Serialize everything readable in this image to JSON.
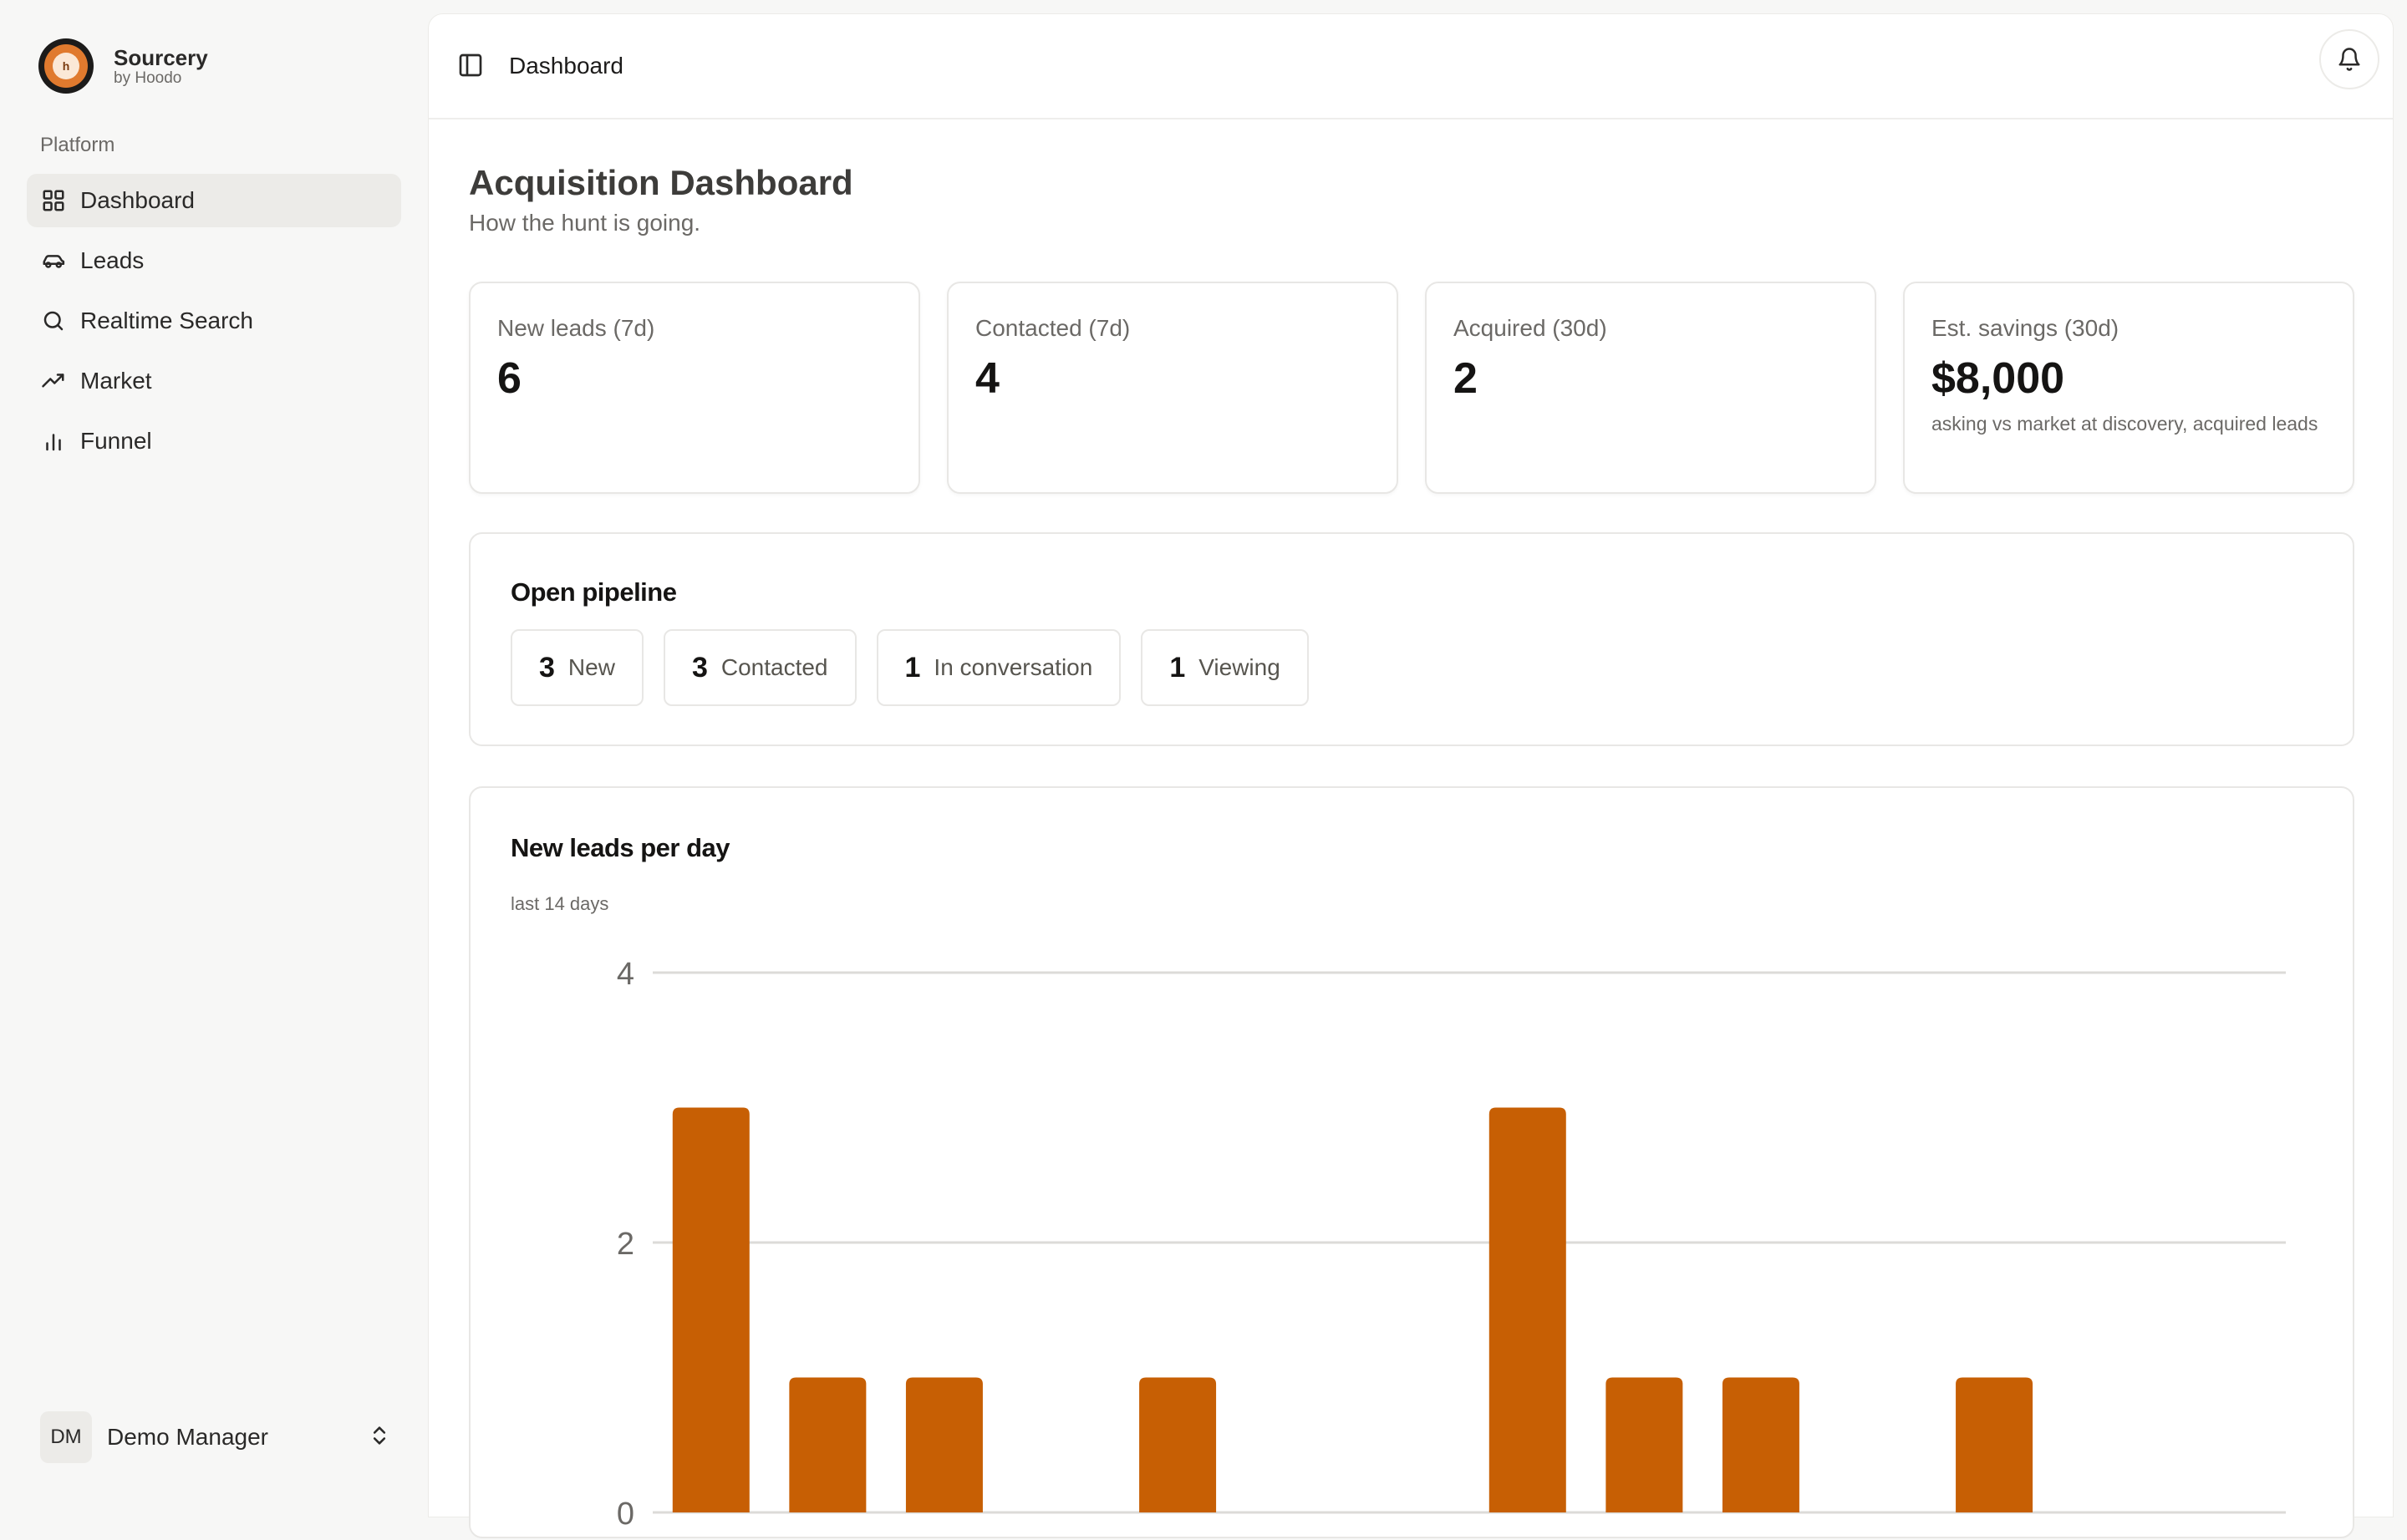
{
  "brand": {
    "name": "Sourcery",
    "sub": "by Hoodo",
    "logo_glyph": "h"
  },
  "sidebar": {
    "section": "Platform",
    "items": [
      {
        "label": "Dashboard",
        "icon": "grid-icon",
        "active": true
      },
      {
        "label": "Leads",
        "icon": "car-icon",
        "active": false
      },
      {
        "label": "Realtime Search",
        "icon": "search-icon",
        "active": false
      },
      {
        "label": "Market",
        "icon": "trending-up-icon",
        "active": false
      },
      {
        "label": "Funnel",
        "icon": "bar-chart-icon",
        "active": false
      }
    ]
  },
  "user": {
    "initials": "DM",
    "name": "Demo Manager"
  },
  "topbar": {
    "title": "Dashboard"
  },
  "page": {
    "title": "Acquisition Dashboard",
    "subtitle": "How the hunt is going."
  },
  "stats": [
    {
      "label": "New leads (7d)",
      "value": "6",
      "note": ""
    },
    {
      "label": "Contacted (7d)",
      "value": "4",
      "note": ""
    },
    {
      "label": "Acquired (30d)",
      "value": "2",
      "note": ""
    },
    {
      "label": "Est. savings (30d)",
      "value": "$8,000",
      "note": "asking vs market at discovery, acquired leads"
    }
  ],
  "pipeline": {
    "title": "Open pipeline",
    "stages": [
      {
        "count": "3",
        "label": "New"
      },
      {
        "count": "3",
        "label": "Contacted"
      },
      {
        "count": "1",
        "label": "In conversation"
      },
      {
        "count": "1",
        "label": "Viewing"
      }
    ]
  },
  "chart_data": {
    "type": "bar",
    "title": "New leads per day",
    "subtitle": "last 14 days",
    "values": [
      3,
      1,
      1,
      0,
      1,
      0,
      0,
      3,
      1,
      1,
      0,
      1,
      0,
      0
    ],
    "yticks": [
      0,
      2,
      4
    ],
    "ylim": [
      0,
      4
    ],
    "grid": true,
    "color": "#c75f04"
  }
}
